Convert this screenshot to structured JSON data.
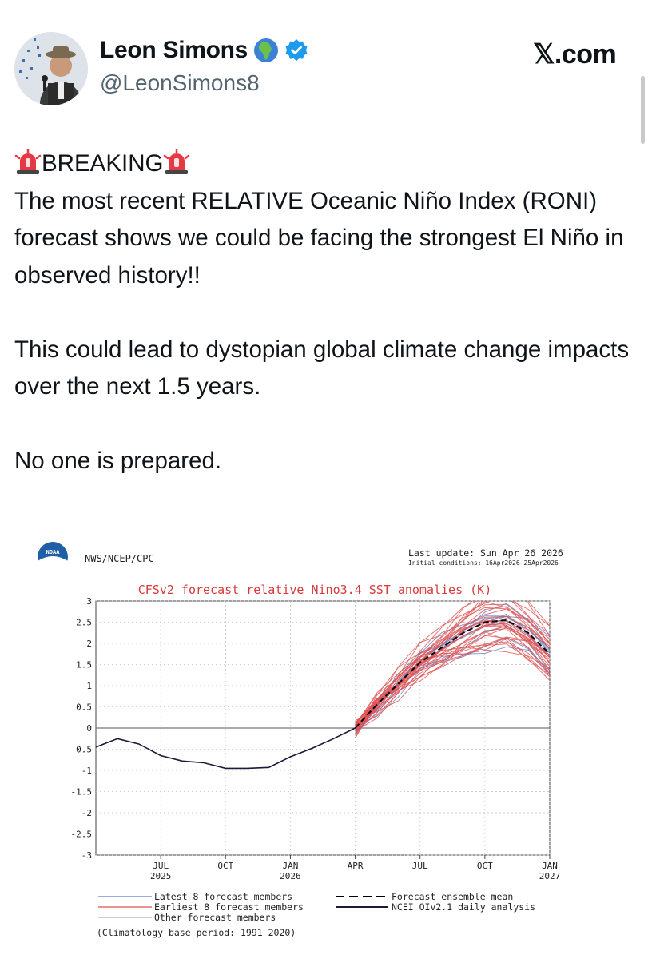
{
  "author": {
    "name": "Leon Simons",
    "handle": "@LeonSimons8",
    "globe_icon": "globe-africa-icon",
    "verified_icon": "verified-badge-icon",
    "verified_color": "#1d9bf0"
  },
  "brand": {
    "label": "𝕏.com"
  },
  "tweet": {
    "line1": "BREAKING",
    "siren_icon": "rotating-light-icon",
    "paragraph1": "The most recent RELATIVE Oceanic Niño Index (RONI) forecast shows we could be facing the strongest El Niño in observed history!!",
    "paragraph2": "This could lead to dystopian global climate change impacts over the next 1.5 years.",
    "paragraph3": "No one is prepared."
  },
  "figure": {
    "source": "NWS/NCEP/CPC",
    "logo_text": "NOAA",
    "last_update": "Last update: Sun Apr 26 2026",
    "initial_conditions": "Initial conditions: 16Apr2026–25Apr2026",
    "climatology": "(Climatology base period: 1991–2020)",
    "legend": {
      "latest": "Latest 8 forecast members",
      "earliest": "Earliest 8 forecast members",
      "other": "Other forecast members",
      "mean": "Forecast ensemble mean",
      "analysis": "NCEI OIv2.1 daily analysis"
    }
  },
  "chart_data": {
    "type": "line",
    "title": "CFSv2 forecast relative Nino3.4 SST anomalies (K)",
    "xlabel": "",
    "ylabel": "",
    "ylim": [
      -3,
      3
    ],
    "yticks": [
      "3",
      "2.5",
      "2",
      "1.5",
      "1",
      "0.5",
      "0",
      "-0.5",
      "-1",
      "-1.5",
      "-2",
      "-2.5",
      "-3"
    ],
    "xtick_labels": [
      {
        "label": "JUL",
        "year": "2025"
      },
      {
        "label": "OCT",
        "year": ""
      },
      {
        "label": "JAN",
        "year": "2026"
      },
      {
        "label": "APR",
        "year": ""
      },
      {
        "label": "JUL",
        "year": ""
      },
      {
        "label": "OCT",
        "year": ""
      },
      {
        "label": "JAN",
        "year": "2027"
      }
    ],
    "grid": true,
    "colors": {
      "latest": "#5b7fc4",
      "earliest": "#e05050",
      "other": "#b0b0b0",
      "mean": "#000000",
      "analysis": "#1a1a3a"
    },
    "series": [
      {
        "name": "NCEI OIv2.1 daily analysis",
        "points": [
          [
            "Apr 2025",
            -0.45
          ],
          [
            "May 2025",
            -0.25
          ],
          [
            "Jun 2025",
            -0.38
          ],
          [
            "Jul 2025",
            -0.65
          ],
          [
            "Aug 2025",
            -0.78
          ],
          [
            "Sep 2025",
            -0.82
          ],
          [
            "Oct 2025",
            -0.95
          ],
          [
            "Nov 2025",
            -0.95
          ],
          [
            "Dec 2025",
            -0.93
          ],
          [
            "Jan 2026",
            -0.68
          ],
          [
            "Feb 2026",
            -0.48
          ],
          [
            "Mar 2026",
            -0.25
          ],
          [
            "Apr 2026",
            0.0
          ]
        ]
      },
      {
        "name": "Forecast ensemble mean",
        "points": [
          [
            "Apr 2026",
            0.0
          ],
          [
            "May 2026",
            0.55
          ],
          [
            "Jun 2026",
            1.05
          ],
          [
            "Jul 2026",
            1.55
          ],
          [
            "Aug 2026",
            1.9
          ],
          [
            "Sep 2026",
            2.25
          ],
          [
            "Oct 2026",
            2.5
          ],
          [
            "Nov 2026",
            2.55
          ],
          [
            "Dec 2026",
            2.25
          ],
          [
            "Jan 2027",
            1.75
          ]
        ]
      }
    ]
  }
}
